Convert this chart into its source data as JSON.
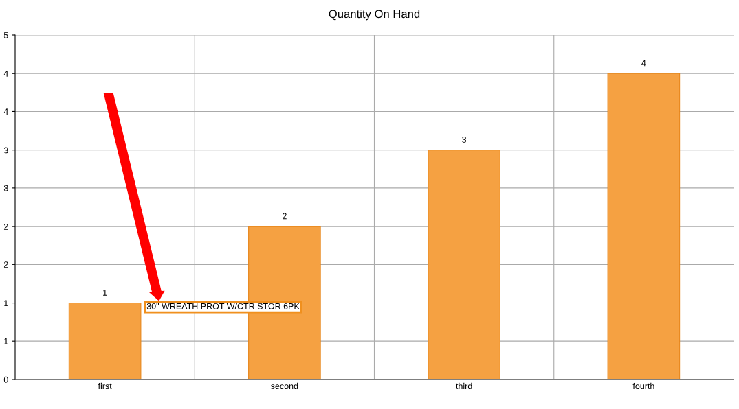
{
  "chart_data": {
    "type": "bar",
    "title": "Quantity On Hand",
    "categories": [
      "first",
      "second",
      "third",
      "fourth"
    ],
    "values": [
      1.11,
      2.22,
      3.33,
      4.44
    ],
    "value_labels": [
      "1",
      "2",
      "3",
      "4"
    ],
    "color": "#f5a142",
    "ylim": [
      0,
      5
    ],
    "yticks": [
      0,
      {
        "value": 0.556,
        "label": "1"
      },
      {
        "value": 1.11,
        "label": "1"
      },
      {
        "value": 1.67,
        "label": "2"
      },
      {
        "value": 2.22,
        "label": "2"
      },
      {
        "value": 2.78,
        "label": "3"
      },
      {
        "value": 3.33,
        "label": "3"
      },
      {
        "value": 3.89,
        "label": "4"
      },
      {
        "value": 4.44,
        "label": "4"
      },
      5
    ],
    "grid": true,
    "annotations": [
      "30\" WREATH PROT W/CTR STOR 6PK"
    ]
  }
}
